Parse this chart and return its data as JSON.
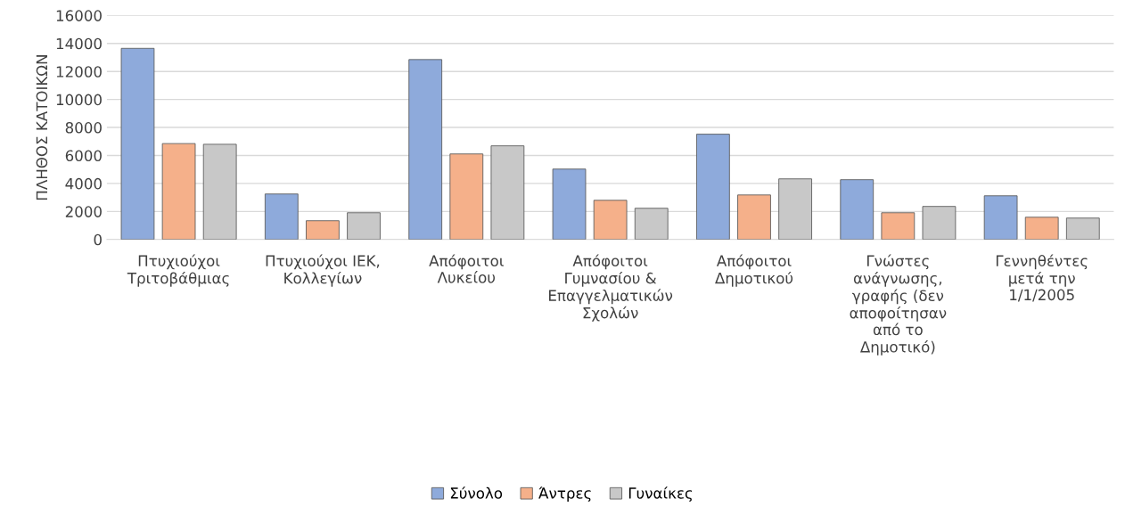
{
  "chart_data": {
    "type": "bar",
    "ylabel": "ΠΛΗΘΟΣ ΚΑΤΟΙΚΩΝ",
    "categories": [
      "Πτυχιούχοι\nΤριτοβάθμιας",
      "Πτυχιούχοι ΙΕΚ,\nΚολλεγίων",
      "Απόφοιτοι\nΛυκείου",
      "Απόφοιτοι\nΓυμνασίου &\nΕπαγγελματικών\nΣχολών",
      "Απόφοιτοι\nΔημοτικού",
      "Γνώστες\nανάγνωσης,\nγραφής (δεν\nαποφοίτησαν\nαπό το\nΔημοτικό)",
      "Γεννηθέντες\nμετά την\n1/1/2005"
    ],
    "series": [
      {
        "name": "Σύνολο",
        "color": "#8eaadb",
        "values": [
          13650,
          3250,
          12850,
          5030,
          7520,
          4270,
          3120
        ]
      },
      {
        "name": "Άντρες",
        "color": "#f5b08a",
        "values": [
          6850,
          1340,
          6110,
          2800,
          3180,
          1910,
          1590
        ]
      },
      {
        "name": "Γυναίκες",
        "color": "#c8c8c8",
        "values": [
          6800,
          1910,
          6690,
          2230,
          4330,
          2360,
          1530
        ]
      }
    ],
    "ylim": [
      0,
      16000
    ],
    "yticks": [
      0,
      2000,
      4000,
      6000,
      8000,
      10000,
      12000,
      14000,
      16000
    ],
    "grid": "y",
    "legend": "bottom"
  }
}
